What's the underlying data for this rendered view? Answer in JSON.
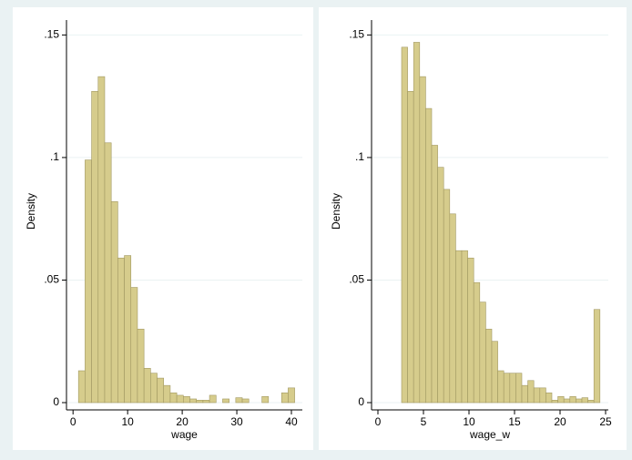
{
  "chart_data": [
    {
      "type": "histogram",
      "x_label": "wage",
      "y_label": "Density",
      "color": "#d6cc8c",
      "edge_color": "#a19862",
      "grid": true,
      "bins": [
        1.0,
        2.2,
        3.4,
        4.6,
        5.8,
        7.0,
        8.2,
        9.4,
        10.6,
        11.8,
        13.0,
        14.2,
        15.4,
        16.6,
        17.8,
        19.0,
        20.2,
        21.4,
        22.6,
        23.8,
        25.0,
        26.2,
        27.4,
        28.6,
        29.8,
        31.0,
        32.2,
        33.4,
        34.6,
        35.8,
        37.0,
        38.2,
        39.4,
        40.6
      ],
      "values": [
        0.013,
        0.099,
        0.127,
        0.133,
        0.106,
        0.082,
        0.059,
        0.06,
        0.047,
        0.03,
        0.014,
        0.012,
        0.01,
        0.007,
        0.004,
        0.003,
        0.0025,
        0.0015,
        0.001,
        0.001,
        0.003,
        0,
        0.0015,
        0,
        0.002,
        0.0015,
        0,
        0,
        0.0025,
        0,
        0,
        0.004,
        0.006
      ],
      "xlim": [
        -1.2,
        42
      ],
      "xticks": [
        0,
        10,
        20,
        30,
        40
      ],
      "ylim": [
        0,
        0.152
      ],
      "yticks": [
        0,
        {
          "value": 0.05,
          "label": ".05"
        },
        {
          "value": 0.1,
          "label": ".1"
        },
        {
          "value": 0.15,
          "label": ".15"
        }
      ]
    },
    {
      "type": "histogram",
      "x_label": "wage_w",
      "y_label": "Density",
      "color": "#d6cc8c",
      "edge_color": "#a19862",
      "grid": true,
      "bins": [
        2.6,
        3.26,
        3.92,
        4.58,
        5.24,
        5.9,
        6.56,
        7.22,
        7.88,
        8.54,
        9.2,
        9.86,
        10.52,
        11.18,
        11.84,
        12.5,
        13.16,
        13.82,
        14.48,
        15.14,
        15.8,
        16.46,
        17.12,
        17.78,
        18.44,
        19.1,
        19.76,
        20.42,
        21.08,
        21.74,
        22.4,
        23.06,
        23.72,
        24.38
      ],
      "values": [
        0.145,
        0.127,
        0.147,
        0.133,
        0.12,
        0.105,
        0.096,
        0.087,
        0.077,
        0.062,
        0.062,
        0.059,
        0.049,
        0.041,
        0.03,
        0.025,
        0.013,
        0.012,
        0.012,
        0.012,
        0.007,
        0.009,
        0.006,
        0.006,
        0.004,
        0.001,
        0.0025,
        0.0015,
        0.0025,
        0.0015,
        0.002,
        0.001,
        0.038
      ],
      "xlim": [
        -0.7,
        25.3
      ],
      "xticks": [
        0,
        5,
        10,
        15,
        20,
        25
      ],
      "ylim": [
        0,
        0.152
      ],
      "yticks": [
        0,
        {
          "value": 0.05,
          "label": ".05"
        },
        {
          "value": 0.1,
          "label": ".1"
        },
        {
          "value": 0.15,
          "label": ".15"
        }
      ]
    }
  ]
}
